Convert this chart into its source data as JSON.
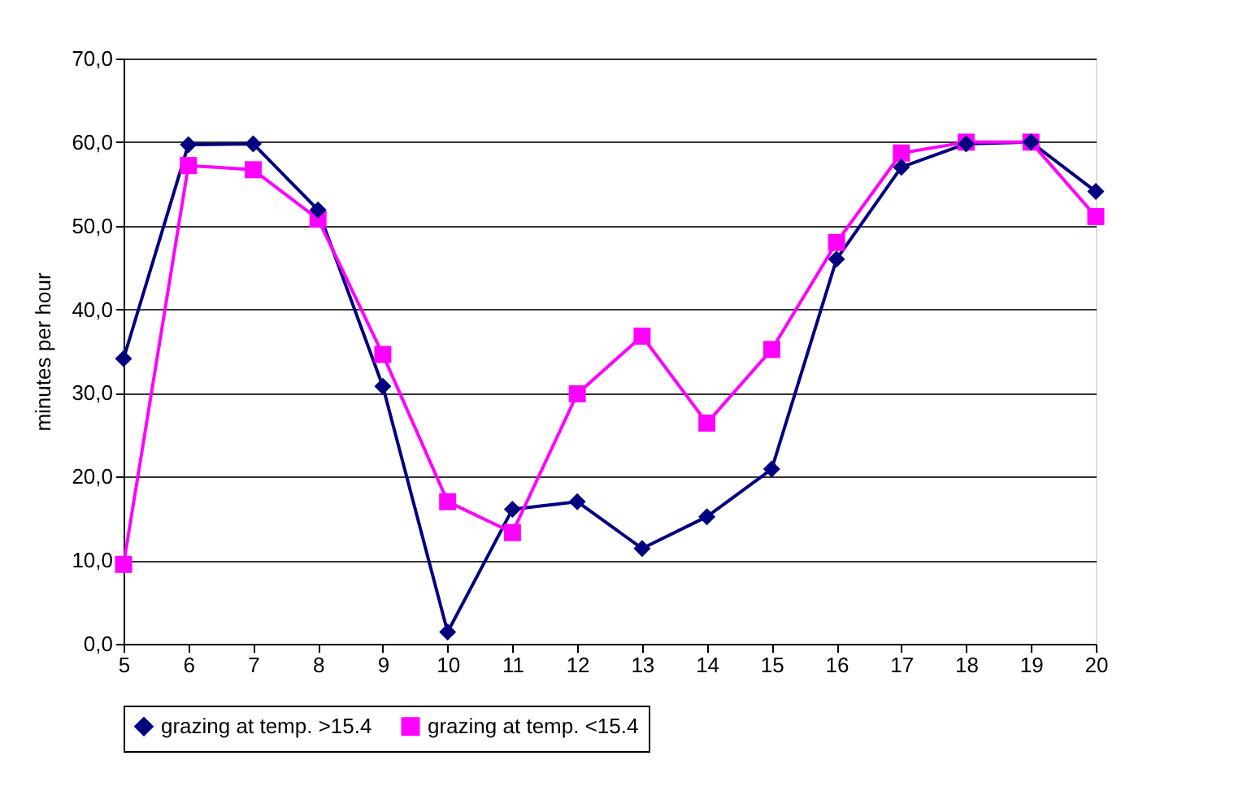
{
  "chart_data": {
    "type": "line",
    "ylabel": "minutes per hour",
    "x": [
      5,
      6,
      7,
      8,
      9,
      10,
      11,
      12,
      13,
      14,
      15,
      16,
      17,
      18,
      19,
      20
    ],
    "series": [
      {
        "name": "grazing at temp. >15.4",
        "color": "#000080",
        "marker": "diamond",
        "values": [
          34.1,
          59.7,
          59.8,
          51.9,
          30.8,
          1.4,
          16.1,
          17.0,
          11.4,
          15.2,
          20.9,
          46.0,
          57.0,
          59.8,
          60.0,
          54.1
        ]
      },
      {
        "name": "grazing at temp. <15.4",
        "color": "#ff00ff",
        "marker": "square",
        "values": [
          9.5,
          57.2,
          56.7,
          50.8,
          34.6,
          17.0,
          13.3,
          29.9,
          36.8,
          26.4,
          35.2,
          48.0,
          58.7,
          60.0,
          60.0,
          51.1
        ]
      }
    ],
    "xlim": [
      5,
      20
    ],
    "xticks": [
      5,
      6,
      7,
      8,
      9,
      10,
      11,
      12,
      13,
      14,
      15,
      16,
      17,
      18,
      19,
      20
    ],
    "ylim": [
      0,
      70
    ],
    "yticks": [
      {
        "value": 0,
        "label": "0,0"
      },
      {
        "value": 10,
        "label": "10,0"
      },
      {
        "value": 20,
        "label": "20,0"
      },
      {
        "value": 30,
        "label": "30,0"
      },
      {
        "value": 40,
        "label": "40,0"
      },
      {
        "value": 50,
        "label": "50,0"
      },
      {
        "value": 60,
        "label": "60,0"
      },
      {
        "value": 70,
        "label": "70,0"
      }
    ],
    "grid": "y",
    "legend": "bottom",
    "line_style": "solid"
  }
}
